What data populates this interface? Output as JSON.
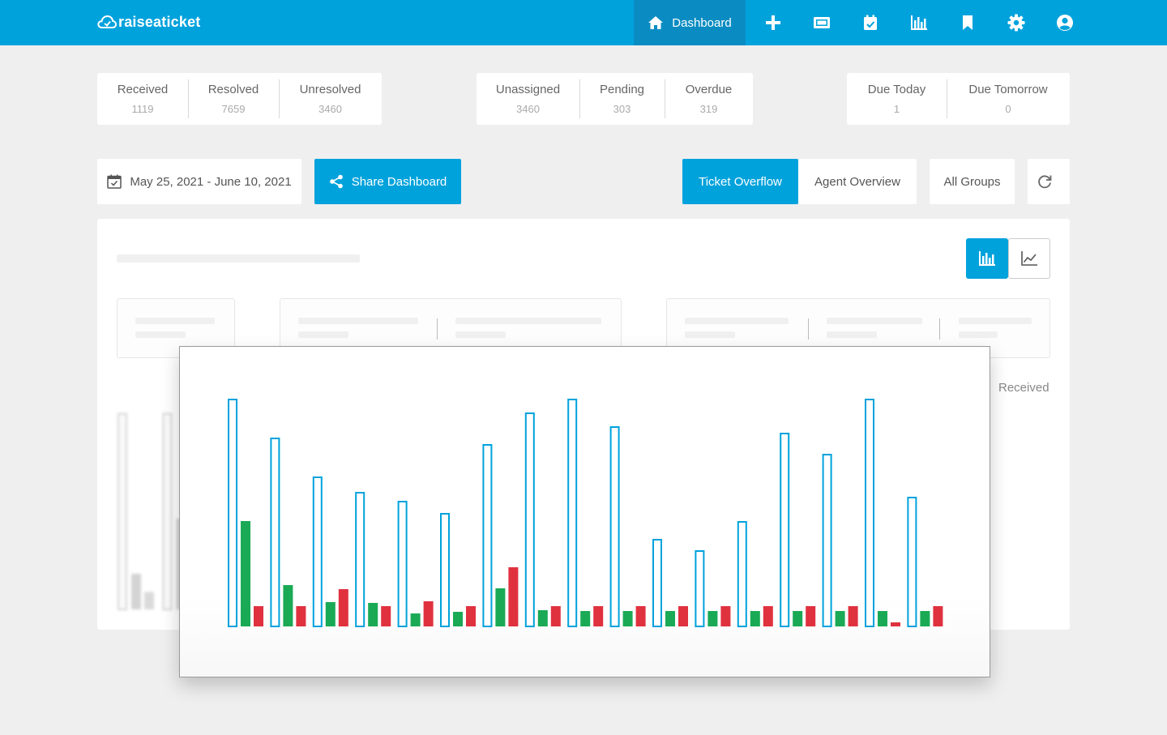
{
  "app": {
    "name": "raiseaticket"
  },
  "nav": {
    "dashboard_label": "Dashboard",
    "icons": [
      "plus-icon",
      "ticket-icon",
      "calendar-check-icon",
      "bar-chart-icon",
      "bookmark-icon",
      "gear-icon",
      "user-circle-icon"
    ]
  },
  "stats": {
    "group1": [
      {
        "label": "Received",
        "value": "1119"
      },
      {
        "label": "Resolved",
        "value": "7659"
      },
      {
        "label": "Unresolved",
        "value": "3460"
      }
    ],
    "group2": [
      {
        "label": "Unassigned",
        "value": "3460"
      },
      {
        "label": "Pending",
        "value": "303"
      },
      {
        "label": "Overdue",
        "value": "319"
      }
    ],
    "group3": [
      {
        "label": "Due Today",
        "value": "1"
      },
      {
        "label": "Due Tomorrow",
        "value": "0"
      }
    ]
  },
  "controls": {
    "date_range": "May 25, 2021 - June 10, 2021",
    "share_label": "Share Dashboard",
    "tab_ticket_overflow": "Ticket Overflow",
    "tab_agent_overview": "Agent Overview",
    "groups_label": "All Groups"
  },
  "legend": {
    "received_label": "Received"
  },
  "colors": {
    "brand": "#00a2dc",
    "green": "#1aaa55",
    "red": "#e0313f"
  },
  "chart_data": {
    "type": "bar",
    "x": [
      1,
      2,
      3,
      4,
      5,
      6,
      7,
      8,
      9,
      10,
      11,
      12,
      13,
      14,
      15,
      16,
      17
    ],
    "ylim": [
      0,
      290
    ],
    "series": [
      {
        "values": [
          280,
          232,
          184,
          165,
          154,
          139,
          224,
          263,
          280,
          246,
          107,
          93,
          129,
          238,
          212,
          280,
          159
        ]
      },
      {
        "values": [
          130,
          51,
          30,
          29,
          16,
          18,
          47,
          20,
          19,
          19,
          19,
          19,
          19,
          19,
          19,
          19,
          19
        ]
      },
      {
        "values": [
          25,
          25,
          46,
          25,
          31,
          25,
          73,
          25,
          25,
          25,
          25,
          25,
          25,
          25,
          25,
          5,
          25
        ]
      }
    ]
  }
}
